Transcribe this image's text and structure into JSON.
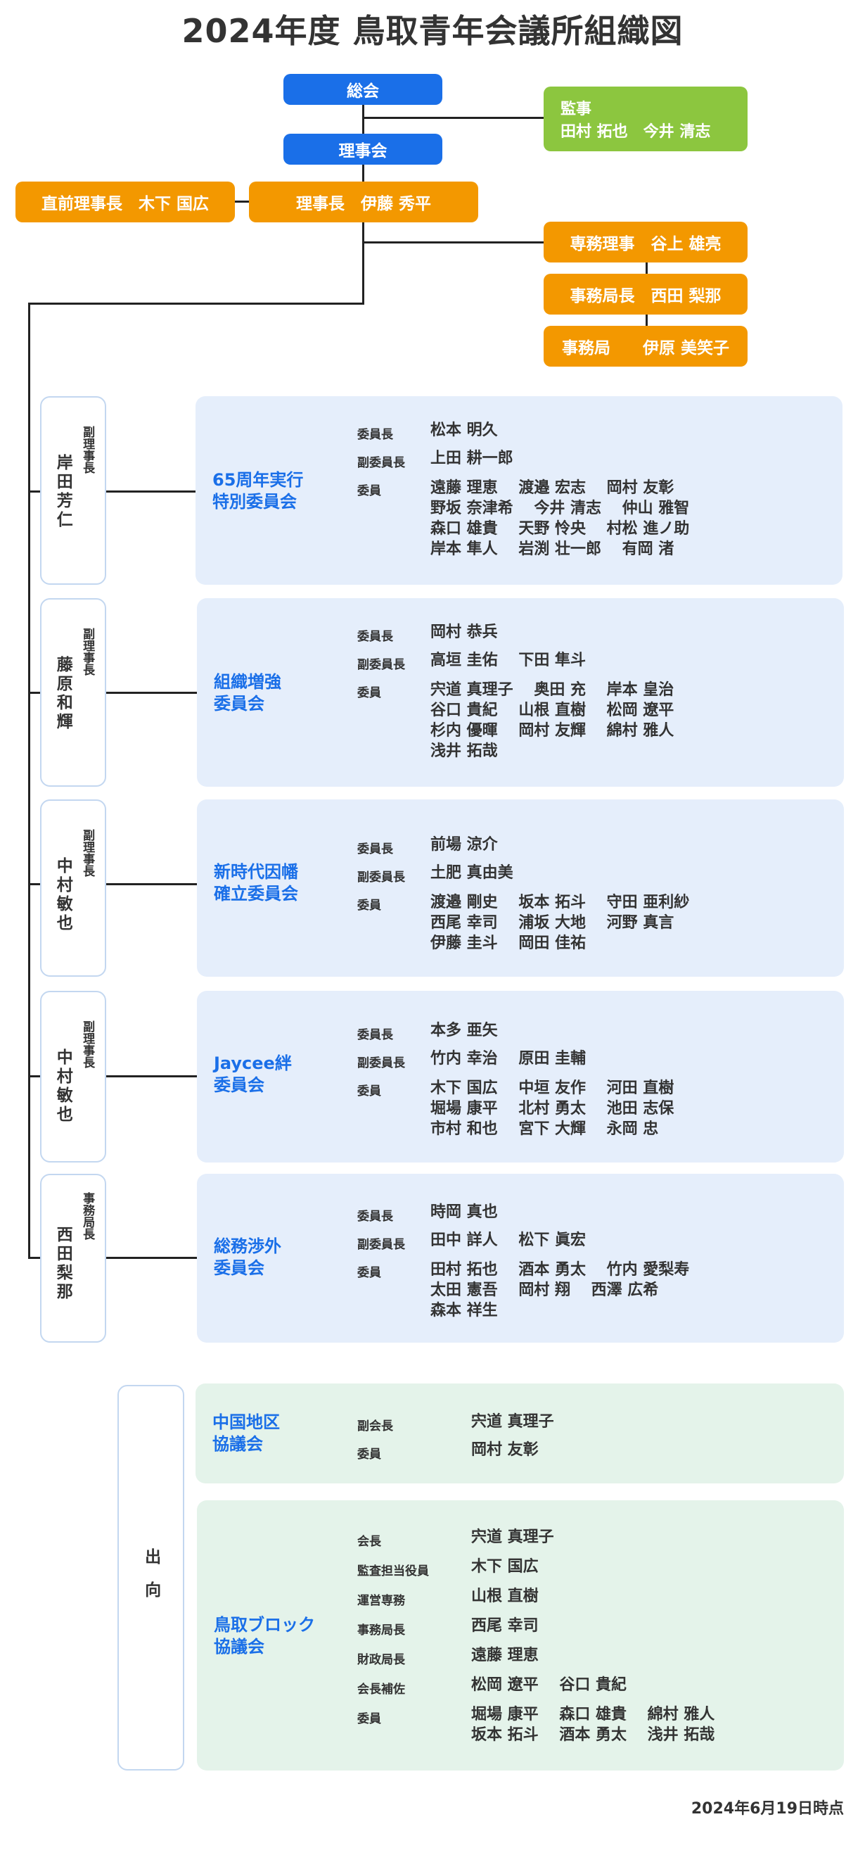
{
  "title": "2024年度 鳥取青年会議所組織図",
  "top": {
    "general_assembly": "総会",
    "board": "理事会",
    "auditor_label": "監事",
    "auditor_names": "田村 拓也　今井 清志",
    "prev_president": "直前理事長　木下 国広",
    "president": "理事長　伊藤 秀平",
    "exec_director": "専務理事　谷上 雄亮",
    "secretary_general": "事務局長　西田 梨那",
    "secretariat": "事務局　　伊原 美笑子"
  },
  "groups": [
    {
      "vice_title": "副理事長",
      "vice_name": "岸田芳仁",
      "committee": [
        "65周年実行",
        "特別委員会"
      ],
      "chair": "松本 明久",
      "vice_chair": "上田 耕一郎",
      "members": [
        "遠藤 理恵　 渡邉 宏志　 岡村 友彰",
        "野坂 奈津希　 今井 清志　 仲山 雅智",
        "森口 雄貴　 天野 怜央　 村松 進ノ助",
        "岸本 隼人　 岩渕 壮一郎　 有岡 渚"
      ]
    },
    {
      "vice_title": "副理事長",
      "vice_name": "藤原和輝",
      "committee": [
        "組織増強",
        "委員会"
      ],
      "chair": "岡村 恭兵",
      "vice_chair": "高垣 圭佑　 下田 隼斗",
      "members": [
        "宍道 真理子　 奥田 充　 岸本 皇治",
        "谷口 貴紀　 山根 直樹　 松岡 遼平",
        "杉内 優暉　 岡村 友輝　 綿村 雅人",
        "浅井 拓哉"
      ]
    },
    {
      "vice_title": "副理事長",
      "vice_name": "中村敏也",
      "committee": [
        "新時代因幡",
        "確立委員会"
      ],
      "chair": "前場 涼介",
      "vice_chair": "土肥 真由美",
      "members": [
        "渡邉 剛史　 坂本 拓斗　 守田 亜利紗",
        "西尾 幸司　 浦坂 大地　 河野 真言",
        "伊藤 圭斗　 岡田 佳祐"
      ]
    },
    {
      "vice_title": "副理事長",
      "vice_name": "中村敏也",
      "committee": [
        "Jaycee絆",
        "委員会"
      ],
      "chair": "本多 亜矢",
      "vice_chair": "竹内 幸治　 原田 圭輔",
      "members": [
        "木下 国広　 中垣 友作　 河田 直樹",
        "堀場 康平　 北村 勇太　 池田 志保",
        "市村 和也　 宮下 大輝　 永岡 忠"
      ]
    },
    {
      "vice_title": "事務局長",
      "vice_name": "西田梨那",
      "committee": [
        "総務渉外",
        "委員会"
      ],
      "chair": "時岡 真也",
      "vice_chair": "田中 詳人　 松下 眞宏",
      "members": [
        "田村 拓也　 酒本 勇太　 竹内 愛梨寿",
        "太田 憲吾　 岡村 翔　 西澤 広希",
        "森本 祥生"
      ]
    }
  ],
  "labels": {
    "chair": "委員長",
    "vice_chair": "副委員長",
    "member": "委員"
  },
  "secondment": {
    "label": "出向",
    "chugoku": {
      "name": [
        "中国地区",
        "協議会"
      ],
      "rows": [
        {
          "role": "副会長",
          "names": "宍道 真理子"
        },
        {
          "role": "委員",
          "names": "岡村 友彰"
        }
      ]
    },
    "tottori": {
      "name": [
        "鳥取ブロック",
        "協議会"
      ],
      "rows": [
        {
          "role": "会長",
          "names": "宍道 真理子"
        },
        {
          "role": "監査担当役員",
          "names": "木下 国広"
        },
        {
          "role": "運営専務",
          "names": "山根 直樹"
        },
        {
          "role": "事務局長",
          "names": "西尾 幸司"
        },
        {
          "role": "財政局長",
          "names": "遠藤 理恵"
        },
        {
          "role": "会長補佐",
          "names": "松岡 遼平　 谷口 貴紀"
        },
        {
          "role": "委員",
          "names": "堀場 康平　 森口 雄貴　 綿村 雅人"
        },
        {
          "role": "",
          "names": "坂本 拓斗　 酒本 勇太　 浅井 拓哉"
        }
      ]
    }
  },
  "footer": "2024年6月19日時点"
}
